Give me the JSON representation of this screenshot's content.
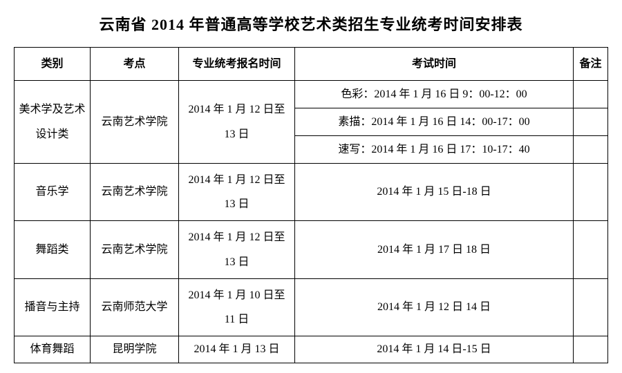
{
  "title": "云南省 2014 年普通高等学校艺术类招生专业统考时间安排表",
  "headers": {
    "category": "类别",
    "site": "考点",
    "register": "专业统考报名时间",
    "exam": "考试时间",
    "note": "备注"
  },
  "rows": {
    "art": {
      "category": "美术学及艺术设计类",
      "site": "云南艺术学院",
      "register": "2014 年 1 月 12 日至 13 日",
      "exam1": "色彩：2014 年 1 月 16 日 9：00-12：00",
      "exam2": "素描：2014 年 1 月 16 日 14：00-17：00",
      "exam3": "速写：2014 年 1 月 16 日 17：10-17：40",
      "note": ""
    },
    "music": {
      "category": "音乐学",
      "site": "云南艺术学院",
      "register": "2014 年 1 月 12 日至 13 日",
      "exam": "2014 年 1 月 15 日-18 日",
      "note": ""
    },
    "dance": {
      "category": "舞蹈类",
      "site": "云南艺术学院",
      "register": "2014 年 1 月 12 日至 13 日",
      "exam": "2014 年 1 月 17 日 18 日",
      "note": ""
    },
    "broadcast": {
      "category": "播音与主持",
      "site": "云南师范大学",
      "register": "2014 年 1 月 10 日至 11 日",
      "exam": "2014 年 1 月 12 日 14 日",
      "note": ""
    },
    "sportdance": {
      "category": "体育舞蹈",
      "site": "昆明学院",
      "register": "2014 年 1 月 13 日",
      "exam": "2014 年 1 月 14 日-15 日",
      "note": ""
    }
  }
}
